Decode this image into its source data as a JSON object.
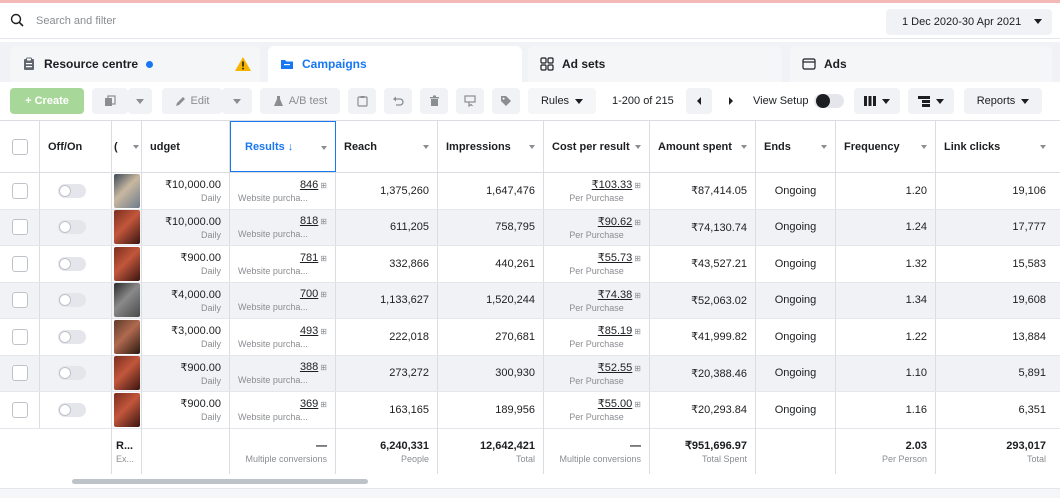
{
  "search": {
    "placeholder": "Search and filter"
  },
  "date_range": "1 Dec 2020-30 Apr 2021",
  "tabs": [
    {
      "label": "Resource centre"
    },
    {
      "label": "Campaigns"
    },
    {
      "label": "Ad sets"
    },
    {
      "label": "Ads"
    }
  ],
  "toolbar": {
    "create_label": "+ Create",
    "edit_label": "Edit",
    "ab_label": "A/B test",
    "rules_label": "Rules",
    "pager_text": "1-200 of 215",
    "view_setup_label": "View Setup",
    "reports_label": "Reports"
  },
  "table": {
    "columns": {
      "onoff": "Off/On",
      "name": "(",
      "budget": "udget",
      "results": "Results ↓",
      "reach": "Reach",
      "impressions": "Impressions",
      "cpr": "Cost per result",
      "amount": "Amount spent",
      "ends": "Ends",
      "frequency": "Frequency",
      "clicks": "Link clicks"
    },
    "rows": [
      {
        "budget": "₹10,000.00",
        "budget_sub": "Daily",
        "results": "846",
        "results_sub": "Website purcha...",
        "reach": "1,375,260",
        "impressions": "1,647,476",
        "cpr": "₹103.33",
        "cpr_sub": "Per Purchase",
        "amount": "₹87,414.05",
        "ends": "Ongoing",
        "frequency": "1.20",
        "clicks": "19,106"
      },
      {
        "budget": "₹10,000.00",
        "budget_sub": "Daily",
        "results": "818",
        "results_sub": "Website purcha...",
        "reach": "611,205",
        "impressions": "758,795",
        "cpr": "₹90.62",
        "cpr_sub": "Per Purchase",
        "amount": "₹74,130.74",
        "ends": "Ongoing",
        "frequency": "1.24",
        "clicks": "17,777"
      },
      {
        "budget": "₹900.00",
        "budget_sub": "Daily",
        "results": "781",
        "results_sub": "Website purcha...",
        "reach": "332,866",
        "impressions": "440,261",
        "cpr": "₹55.73",
        "cpr_sub": "Per Purchase",
        "amount": "₹43,527.21",
        "ends": "Ongoing",
        "frequency": "1.32",
        "clicks": "15,583"
      },
      {
        "budget": "₹4,000.00",
        "budget_sub": "Daily",
        "results": "700",
        "results_sub": "Website purcha...",
        "reach": "1,133,627",
        "impressions": "1,520,244",
        "cpr": "₹74.38",
        "cpr_sub": "Per Purchase",
        "amount": "₹52,063.02",
        "ends": "Ongoing",
        "frequency": "1.34",
        "clicks": "19,608"
      },
      {
        "budget": "₹3,000.00",
        "budget_sub": "Daily",
        "results": "493",
        "results_sub": "Website purcha...",
        "reach": "222,018",
        "impressions": "270,681",
        "cpr": "₹85.19",
        "cpr_sub": "Per Purchase",
        "amount": "₹41,999.82",
        "ends": "Ongoing",
        "frequency": "1.22",
        "clicks": "13,884"
      },
      {
        "budget": "₹900.00",
        "budget_sub": "Daily",
        "results": "388",
        "results_sub": "Website purcha...",
        "reach": "273,272",
        "impressions": "300,930",
        "cpr": "₹52.55",
        "cpr_sub": "Per Purchase",
        "amount": "₹20,388.46",
        "ends": "Ongoing",
        "frequency": "1.10",
        "clicks": "5,891"
      },
      {
        "budget": "₹900.00",
        "budget_sub": "Daily",
        "results": "369",
        "results_sub": "Website purcha...",
        "reach": "163,165",
        "impressions": "189,956",
        "cpr": "₹55.00",
        "cpr_sub": "Per Purchase",
        "amount": "₹20,293.84",
        "ends": "Ongoing",
        "frequency": "1.16",
        "clicks": "6,351"
      }
    ],
    "totals": {
      "name": "R...",
      "name_sub": "Ex...",
      "results": "—",
      "results_sub": "Multiple conversions",
      "reach": "6,240,331",
      "reach_sub": "People",
      "impressions": "12,642,421",
      "impressions_sub": "Total",
      "cpr": "—",
      "cpr_sub": "Multiple conversions",
      "amount": "₹951,696.97",
      "amount_sub": "Total Spent",
      "frequency": "2.03",
      "frequency_sub": "Per Person",
      "clicks": "293,017",
      "clicks_sub": "Total"
    }
  },
  "colors": {
    "accent": "#1877f2",
    "create_button": "#a8d79a",
    "warning": "#f5b400"
  },
  "icons": [
    "search-icon",
    "clipboard-icon",
    "info-dot-icon",
    "warning-icon",
    "campaigns-folder-icon",
    "adsets-grid-icon",
    "ads-square-icon",
    "duplicate-icon",
    "pencil-icon",
    "flask-icon",
    "clipboard-small-icon",
    "undo-icon",
    "trash-icon",
    "preview-icon",
    "tag-icon",
    "columns-icon",
    "breakdown-icon"
  ]
}
